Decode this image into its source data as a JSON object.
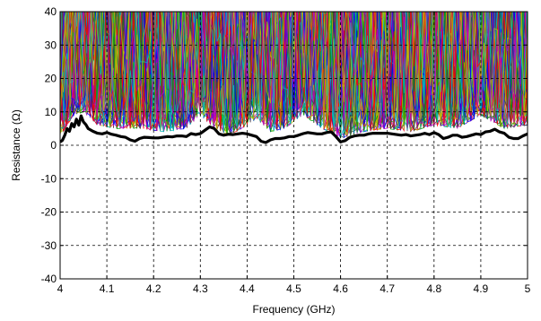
{
  "chart_data": {
    "type": "line",
    "title": "",
    "xlabel": "Frequency (GHz)",
    "ylabel": "Resistance (Ω)",
    "xlim": [
      4,
      5
    ],
    "ylim": [
      -40,
      40
    ],
    "x_ticks": [
      4,
      4.1,
      4.2,
      4.3,
      4.4,
      4.5,
      4.6,
      4.7,
      4.8,
      4.9,
      5
    ],
    "x_tick_labels": [
      "4",
      "4.1",
      "4.2",
      "4.3",
      "4.4",
      "4.5",
      "4.6",
      "4.7",
      "4.8",
      "4.9",
      "5"
    ],
    "y_ticks": [
      -40,
      -30,
      -20,
      -10,
      0,
      10,
      20,
      30,
      40
    ],
    "y_tick_labels": [
      "-40",
      "-30",
      "-20",
      "-10",
      "0",
      "10",
      "20",
      "30",
      "40"
    ],
    "grid": true,
    "grid_style": "dashed",
    "legend": "none",
    "background_curves": {
      "count": 160,
      "description_colors": [
        "#0000ff",
        "#00aa00",
        "#ff0000",
        "#00bfbf",
        "#bf00bf",
        "#bfbf00",
        "#404040"
      ],
      "min_envelope_x": [
        4.0,
        4.01,
        4.03,
        4.05,
        4.08,
        4.12,
        4.17,
        4.22,
        4.27,
        4.3,
        4.33,
        4.36,
        4.39,
        4.42,
        4.45,
        4.48,
        4.52,
        4.56,
        4.6,
        4.65,
        4.7,
        4.75,
        4.8,
        4.85,
        4.9,
        4.95,
        5.0
      ],
      "min_envelope_y": [
        2,
        5,
        9,
        10,
        6,
        5,
        5,
        4,
        5,
        9,
        5,
        3,
        5,
        8,
        4,
        5,
        9,
        5,
        2,
        4,
        5,
        4,
        6,
        5,
        9,
        5,
        6
      ]
    },
    "series": [
      {
        "color": "#000000",
        "style": "thick",
        "x": [
          4.0,
          4.005,
          4.01,
          4.015,
          4.02,
          4.025,
          4.03,
          4.035,
          4.04,
          4.045,
          4.05,
          4.055,
          4.06,
          4.07,
          4.08,
          4.09,
          4.1,
          4.11,
          4.12,
          4.13,
          4.14,
          4.15,
          4.16,
          4.17,
          4.18,
          4.19,
          4.2,
          4.21,
          4.22,
          4.23,
          4.24,
          4.25,
          4.26,
          4.27,
          4.28,
          4.29,
          4.3,
          4.31,
          4.32,
          4.33,
          4.34,
          4.35,
          4.36,
          4.37,
          4.38,
          4.39,
          4.4,
          4.41,
          4.42,
          4.43,
          4.44,
          4.45,
          4.46,
          4.47,
          4.48,
          4.49,
          4.5,
          4.51,
          4.52,
          4.53,
          4.54,
          4.55,
          4.56,
          4.57,
          4.58,
          4.59,
          4.6,
          4.61,
          4.62,
          4.63,
          4.64,
          4.65,
          4.66,
          4.67,
          4.68,
          4.69,
          4.7,
          4.71,
          4.72,
          4.73,
          4.74,
          4.75,
          4.76,
          4.77,
          4.78,
          4.79,
          4.8,
          4.81,
          4.82,
          4.83,
          4.84,
          4.85,
          4.86,
          4.87,
          4.88,
          4.89,
          4.9,
          4.91,
          4.92,
          4.93,
          4.94,
          4.95,
          4.96,
          4.97,
          4.98,
          4.99,
          5.0
        ],
        "y": [
          1.0,
          1.5,
          3.0,
          5.0,
          4.2,
          6.5,
          5.5,
          7.8,
          6.0,
          8.8,
          7.0,
          6.2,
          5.0,
          4.2,
          3.6,
          3.4,
          3.8,
          3.3,
          3.0,
          2.6,
          2.4,
          1.6,
          1.2,
          2.0,
          2.4,
          2.3,
          2.2,
          2.2,
          2.4,
          2.6,
          2.5,
          2.8,
          2.8,
          2.6,
          3.5,
          3.2,
          3.5,
          4.5,
          5.5,
          5.0,
          3.4,
          3.0,
          3.3,
          3.2,
          3.4,
          3.6,
          3.4,
          3.0,
          2.6,
          1.2,
          0.8,
          1.6,
          2.0,
          2.0,
          2.2,
          2.6,
          2.6,
          3.0,
          3.5,
          3.8,
          3.6,
          3.4,
          3.4,
          3.8,
          4.0,
          2.6,
          1.0,
          1.4,
          2.4,
          2.8,
          3.0,
          3.0,
          3.4,
          3.6,
          3.6,
          3.6,
          3.6,
          3.4,
          3.2,
          3.0,
          3.2,
          2.8,
          3.0,
          3.2,
          3.6,
          3.2,
          3.8,
          3.2,
          2.0,
          2.4,
          3.0,
          3.0,
          2.4,
          2.6,
          3.0,
          3.4,
          3.2,
          4.0,
          4.2,
          4.8,
          4.0,
          3.6,
          2.4,
          2.0,
          2.0,
          2.8,
          3.4
        ]
      }
    ]
  }
}
